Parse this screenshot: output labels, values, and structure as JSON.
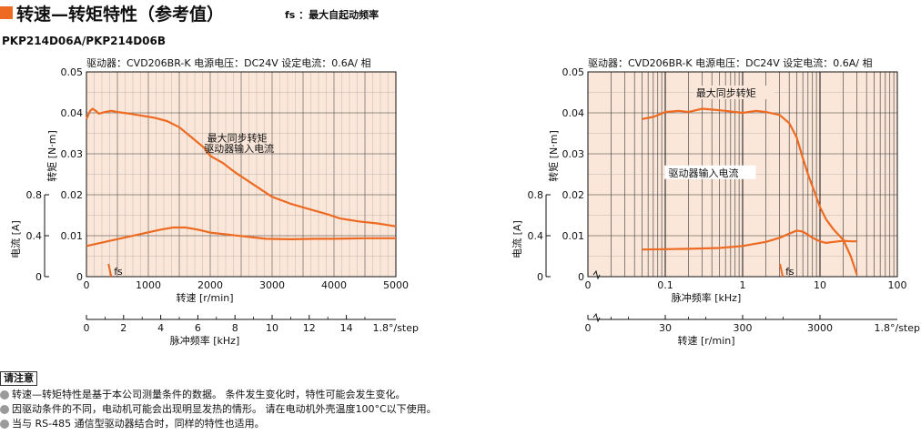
{
  "header": {
    "title": "转速—转矩特性（参考值）",
    "fs_note": "fs ：最大自起动频率",
    "model": "PKP214D06A/PKP214D06B",
    "accent_color": "#ec6a22"
  },
  "notes": {
    "heading": "请注意",
    "items": [
      "转速—转矩特性是基于本公司测量条件的数据。 条件发生变化时，特性可能会发生变化。",
      "因驱动条件的不同，电动机可能会出现明显发热的情形。 请在电动机外壳温度100°C以下使用。",
      "当与 RS-485 通信型驱动器结合时，同样的特性也适用。"
    ]
  },
  "chart_data": [
    {
      "type": "line",
      "scale": "linear",
      "condition": "驱动器：CVD206BR-K  电源电压：DC24V  设定电流：0.6A/ 相",
      "xlabel": "转速 [r/min]",
      "ylabel": "转矩 [N·m]",
      "y2label": "电流 [A]",
      "x2label": "脉冲频率 [kHz]",
      "x2_note": "1.8°/step",
      "xlim": [
        0,
        5000
      ],
      "ylim": [
        0,
        0.05
      ],
      "x_ticks": [
        "0",
        "1000",
        "2000",
        "3000",
        "4000",
        "5000"
      ],
      "y_ticks": [
        "0",
        "0.01",
        "0.02",
        "0.03",
        "0.04",
        "0.05"
      ],
      "y2_ticks": [
        "0",
        "0.4",
        "0.8"
      ],
      "x2_ticks": [
        "0",
        "2",
        "4",
        "6",
        "8",
        "10",
        "12",
        "14"
      ],
      "grid": true,
      "series": [
        {
          "name": "最大同步转矩",
          "x": [
            0,
            30,
            60,
            100,
            150,
            200,
            300,
            400,
            500,
            700,
            900,
            1100,
            1300,
            1500,
            1700,
            1900,
            2000,
            2200,
            2400,
            2600,
            2800,
            3000,
            3300,
            3600,
            3900,
            4100,
            4400,
            4700,
            5000
          ],
          "y": [
            0.0385,
            0.0395,
            0.0405,
            0.041,
            0.0405,
            0.0398,
            0.0402,
            0.0405,
            0.0402,
            0.0398,
            0.0393,
            0.0388,
            0.038,
            0.0365,
            0.034,
            0.0315,
            0.0295,
            0.0278,
            0.0255,
            0.0235,
            0.0215,
            0.0195,
            0.0178,
            0.0165,
            0.0152,
            0.0142,
            0.0135,
            0.013,
            0.0123
          ]
        },
        {
          "name": "驱动器输入电流",
          "y_axis": "current",
          "x": [
            0,
            300,
            600,
            900,
            1200,
            1400,
            1600,
            1800,
            2000,
            2300,
            2600,
            2900,
            3300,
            3700,
            4000,
            4500,
            5000
          ],
          "y": [
            0.3,
            0.34,
            0.38,
            0.42,
            0.46,
            0.48,
            0.48,
            0.46,
            0.43,
            0.41,
            0.39,
            0.37,
            0.365,
            0.37,
            0.37,
            0.375,
            0.375
          ]
        }
      ],
      "annotations": [
        {
          "text": "最大同步转矩"
        },
        {
          "text": "驱动器输入电流"
        },
        {
          "text": "fs",
          "x": 400
        }
      ]
    },
    {
      "type": "line",
      "scale": "log",
      "condition": "驱动器：CVD206BR-K  电源电压：DC24V  设定电流：0.6A/ 相",
      "xlabel": "脉冲频率 [kHz]",
      "ylabel": "转矩 [N·m]",
      "y2label": "电流 [A]",
      "x2label": "转速 [r/min]",
      "x2_note": "1.8°/step",
      "xlim": [
        0.01,
        100
      ],
      "ylim": [
        0,
        0.05
      ],
      "x_ticks": [
        "0",
        "0.1",
        "1",
        "10",
        "100"
      ],
      "y_ticks": [
        "0",
        "0.01",
        "0.02",
        "0.03",
        "0.04",
        "0.05"
      ],
      "y2_ticks": [
        "0",
        "0.4",
        "0.8"
      ],
      "x2_ticks": [
        "0",
        "30",
        "300",
        "3000"
      ],
      "grid": true,
      "series": [
        {
          "name": "最大同步转矩",
          "x": [
            0.05,
            0.07,
            0.1,
            0.15,
            0.2,
            0.3,
            0.4,
            0.6,
            0.8,
            1,
            1.5,
            2,
            3,
            4,
            5,
            6,
            7,
            8,
            10,
            12,
            15,
            20,
            25,
            30
          ],
          "y": [
            0.0385,
            0.039,
            0.0402,
            0.0405,
            0.0402,
            0.041,
            0.0408,
            0.0405,
            0.0402,
            0.04,
            0.0405,
            0.0402,
            0.0395,
            0.0375,
            0.034,
            0.029,
            0.025,
            0.022,
            0.017,
            0.014,
            0.0115,
            0.009,
            0.005,
            0.0005
          ]
        },
        {
          "name": "驱动器输入电流",
          "y_axis": "current",
          "x": [
            0.05,
            0.1,
            0.2,
            0.5,
            1,
            2,
            3,
            4,
            5,
            6,
            7,
            8,
            10,
            12,
            15,
            20,
            25,
            30
          ],
          "y": [
            0.265,
            0.268,
            0.272,
            0.28,
            0.3,
            0.34,
            0.38,
            0.42,
            0.45,
            0.44,
            0.41,
            0.38,
            0.345,
            0.33,
            0.34,
            0.35,
            0.345,
            0.345
          ]
        }
      ],
      "annotations": [
        {
          "text": "最大同步转矩"
        },
        {
          "text": "驱动器输入电流"
        },
        {
          "text": "fs",
          "x": 3.3
        }
      ]
    }
  ]
}
